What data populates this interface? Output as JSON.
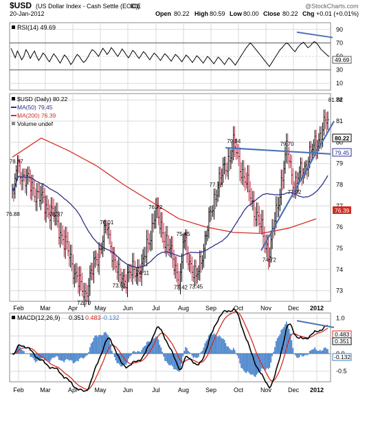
{
  "header": {
    "symbol": "$USD",
    "description": "(US Dollar Index - Cash Settle (EOD))",
    "exchange": "ICE",
    "date": "20-Jan-2012",
    "watermark": "@StockCharts.com",
    "ohlc": {
      "open_label": "Open",
      "open": "80.22",
      "high_label": "High",
      "high": "80.59",
      "low_label": "Low",
      "low": "80.00",
      "close_label": "Close",
      "close": "80.22",
      "chg_label": "Chg",
      "chg": "+0.01 (+0.01%)"
    }
  },
  "rsi_panel": {
    "legend": "RSI(14) 49.69",
    "ticks": [
      "90",
      "70",
      "50",
      "30",
      "10"
    ],
    "last_value_tag": "49.69"
  },
  "price_panel": {
    "legend_main": "$USD (Daily) 80.22",
    "legend_ma50": "MA(50) 79.45",
    "legend_ma200": "MA(200) 76.39",
    "legend_volume": "Volume undef",
    "ticks": [
      "82",
      "81",
      "80",
      "79",
      "78",
      "77",
      "76",
      "75",
      "74",
      "73"
    ],
    "tags": {
      "close": "80.22",
      "ma50": "79.45",
      "ma200": "76.39"
    }
  },
  "macd_panel": {
    "legend_prefix": "MACD(12,26,9)",
    "macd": "0.351",
    "signal": "0.483",
    "hist": "-0.132",
    "ticks": [
      "1.0",
      "0.5",
      "0.0",
      "-0.5"
    ],
    "tags": {
      "signal": "0.483",
      "macd": "0.351",
      "hist": "-0.132"
    }
  },
  "months": [
    "Feb",
    "Mar",
    "Apr",
    "May",
    "Jun",
    "Jul",
    "Aug",
    "Sep",
    "Oct",
    "Nov",
    "Dec",
    "2012"
  ],
  "colors": {
    "ma50": "#2a2f88",
    "ma200": "#d42a20",
    "bars": "#000000",
    "hist": "#3f7dc8",
    "trend": "#4a72b8",
    "grid": "#d9d9d9",
    "signal": "#d42a20"
  },
  "chart_data": [
    {
      "type": "line",
      "title": "RSI(14)",
      "ylim": [
        0,
        100
      ],
      "guide_levels": [
        70,
        50,
        30
      ],
      "values": [
        62,
        55,
        48,
        58,
        52,
        45,
        50,
        60,
        55,
        47,
        53,
        58,
        50,
        44,
        49,
        55,
        52,
        46,
        42,
        48,
        54,
        50,
        45,
        40,
        46,
        52,
        49,
        44,
        38,
        42,
        48,
        53,
        50,
        45,
        41,
        44,
        49,
        55,
        60,
        58,
        54,
        50,
        56,
        62,
        58,
        53,
        57,
        63,
        59,
        54,
        50,
        55,
        61,
        57,
        52,
        48,
        53,
        59,
        56,
        51,
        47,
        52,
        57,
        54,
        49,
        45,
        50,
        55,
        52,
        48,
        44,
        49,
        54,
        51,
        47,
        43,
        48,
        53,
        50,
        46,
        42,
        47,
        52,
        49,
        45,
        41,
        46,
        51,
        48,
        44,
        40,
        45,
        50,
        47,
        43,
        39,
        44,
        49,
        46,
        42,
        38,
        43,
        48,
        45,
        41,
        37,
        42,
        47,
        52,
        57,
        62,
        66,
        70,
        67,
        63,
        59,
        55,
        51,
        47,
        43,
        39,
        35,
        40,
        45,
        50,
        55,
        60,
        63,
        67,
        70,
        68,
        64,
        60,
        57,
        62,
        66,
        69,
        71,
        67,
        63,
        65,
        69,
        72,
        70,
        66,
        61,
        58,
        55,
        52,
        49.69
      ]
    },
    {
      "type": "line",
      "title": "$USD (Daily) 80.22",
      "ylim": [
        72.5,
        82.3
      ],
      "series_names": [
        "$USD (Daily) 80.22",
        "MA(50) 79.45",
        "MA(200) 76.39"
      ],
      "annotations": [
        {
          "label": "76.88",
          "x": 0.1,
          "y": 76.88
        },
        {
          "label": "78.87",
          "x": 0.7,
          "y": 78.87
        },
        {
          "label": "76.37",
          "x": 2.6,
          "y": 76.37
        },
        {
          "label": "72.70",
          "x": 3.7,
          "y": 72.7
        },
        {
          "label": "76.01",
          "x": 4.6,
          "y": 76.01
        },
        {
          "label": "73.51",
          "x": 5.1,
          "y": 73.51
        },
        {
          "label": "74.11",
          "x": 6.0,
          "y": 74.11
        },
        {
          "label": "76.72",
          "x": 6.5,
          "y": 76.72
        },
        {
          "label": "73.42",
          "x": 7.5,
          "y": 73.42
        },
        {
          "label": "75.45",
          "x": 7.6,
          "y": 75.45
        },
        {
          "label": "73.45",
          "x": 8.1,
          "y": 73.45
        },
        {
          "label": "77.78",
          "x": 8.9,
          "y": 77.78
        },
        {
          "label": "79.84",
          "x": 9.6,
          "y": 79.84
        },
        {
          "label": "74.72",
          "x": 11.0,
          "y": 74.72
        },
        {
          "label": "79.70",
          "x": 11.7,
          "y": 79.7
        },
        {
          "label": "77.92",
          "x": 12.0,
          "y": 77.92
        },
        {
          "label": "81.78",
          "x": 13.9,
          "y": 81.78
        }
      ]
    },
    {
      "type": "line",
      "title": "MACD(12,26,9)",
      "ylim": [
        -0.8,
        1.15
      ],
      "series_names": [
        "MACD",
        "Signal",
        "Histogram"
      ]
    }
  ]
}
